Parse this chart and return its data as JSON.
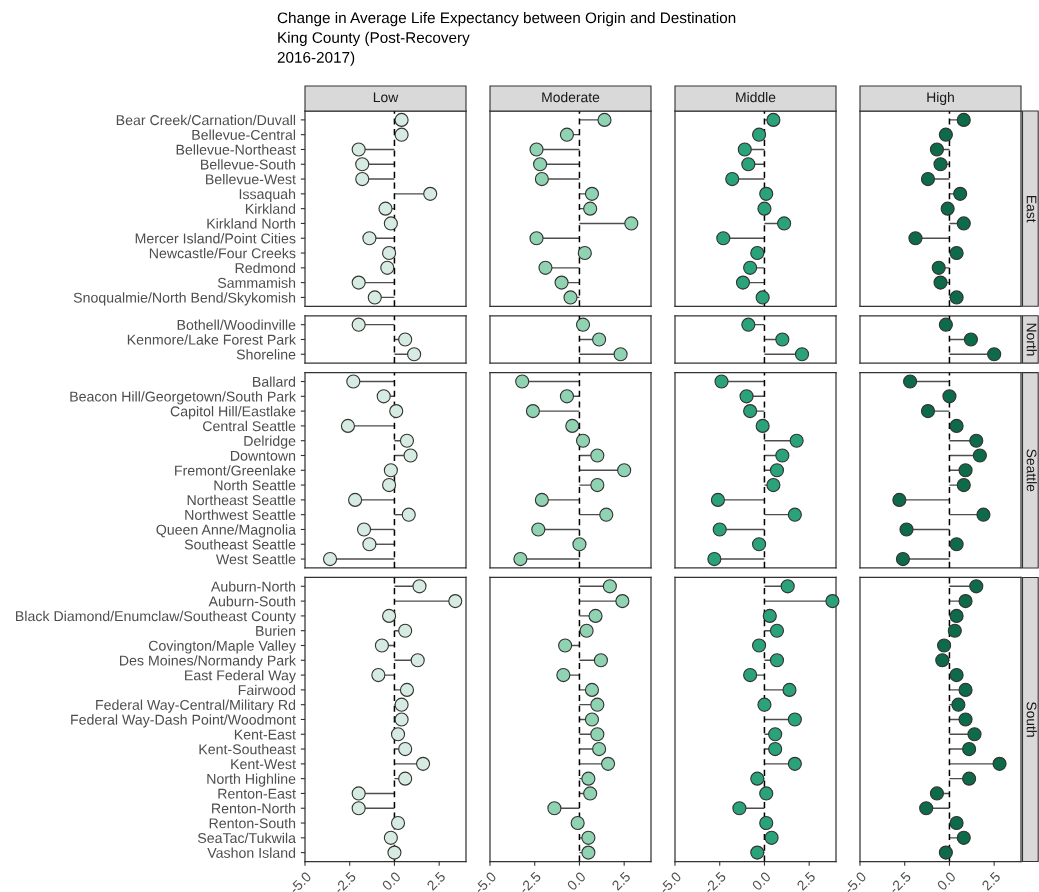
{
  "chart_data": [
    {
      "type": "lollipop",
      "orientation": "horizontal",
      "title": "Change in Average Life Expectancy between Origin and Destination\nKing County (Post-Recovery\n2016-2017)",
      "subtitle": "Low",
      "categories": [
        "Bear Creek/Carnation/Duvall",
        "Bellevue-Central",
        "Bellevue-Northeast",
        "Bellevue-South",
        "Bellevue-West",
        "Issaquah",
        "Kirkland",
        "Kirkland North",
        "Mercer Island/Point Cities",
        "Newcastle/Four Creeks",
        "Redmond",
        "Sammamish",
        "Snoqualmie/North Bend/Skykomish"
      ],
      "values": [
        0.4,
        0.4,
        -2.0,
        -1.8,
        -1.8,
        2.0,
        -0.5,
        -0.2,
        -1.4,
        -0.3,
        -0.4,
        -2.0,
        -1.1
      ],
      "color": "#d6ece2",
      "marker": "circle",
      "xlim": [
        -5,
        4
      ],
      "ref_lines": [
        {
          "axis": "x",
          "value": 0,
          "color": "#000000",
          "line_style": "dashed"
        }
      ],
      "tick_labels": "y"
    },
    {
      "type": "lollipop",
      "orientation": "horizontal",
      "subtitle": "Moderate",
      "categories": [
        "Bear Creek/Carnation/Duvall",
        "Bellevue-Central",
        "Bellevue-Northeast",
        "Bellevue-South",
        "Bellevue-West",
        "Issaquah",
        "Kirkland",
        "Kirkland North",
        "Mercer Island/Point Cities",
        "Newcastle/Four Creeks",
        "Redmond",
        "Sammamish",
        "Snoqualmie/North Bend/Skykomish"
      ],
      "values": [
        1.4,
        -0.7,
        -2.4,
        -2.2,
        -2.1,
        0.7,
        0.6,
        2.9,
        -2.4,
        0.3,
        -1.9,
        -1.0,
        -0.5
      ],
      "color": "#8fd3b3",
      "marker": "circle",
      "xlim": [
        -5,
        4
      ],
      "ref_lines": [
        {
          "axis": "x",
          "value": 0,
          "color": "#000000",
          "line_style": "dashed"
        }
      ],
      "tick_labels": false
    },
    {
      "type": "lollipop",
      "orientation": "horizontal",
      "subtitle": "Middle",
      "categories": [
        "Bear Creek/Carnation/Duvall",
        "Bellevue-Central",
        "Bellevue-Northeast",
        "Bellevue-South",
        "Bellevue-West",
        "Issaquah",
        "Kirkland",
        "Kirkland North",
        "Mercer Island/Point Cities",
        "Newcastle/Four Creeks",
        "Redmond",
        "Sammamish",
        "Snoqualmie/North Bend/Skykomish"
      ],
      "values": [
        0.5,
        -0.3,
        -1.1,
        -0.9,
        -1.8,
        0.1,
        0.0,
        1.1,
        -2.3,
        -0.4,
        -0.8,
        -1.2,
        -0.1
      ],
      "color": "#2ba37a",
      "marker": "circle",
      "xlim": [
        -5,
        4
      ],
      "ref_lines": [
        {
          "axis": "x",
          "value": 0,
          "color": "#000000",
          "line_style": "dashed"
        }
      ],
      "tick_labels": false
    },
    {
      "type": "lollipop",
      "orientation": "horizontal",
      "subtitle": "High",
      "y2label": "East",
      "categories": [
        "Bear Creek/Carnation/Duvall",
        "Bellevue-Central",
        "Bellevue-Northeast",
        "Bellevue-South",
        "Bellevue-West",
        "Issaquah",
        "Kirkland",
        "Kirkland North",
        "Mercer Island/Point Cities",
        "Newcastle/Four Creeks",
        "Redmond",
        "Sammamish",
        "Snoqualmie/North Bend/Skykomish"
      ],
      "values": [
        0.8,
        -0.2,
        -0.7,
        -0.5,
        -1.2,
        0.6,
        -0.1,
        0.8,
        -1.9,
        0.4,
        -0.6,
        -0.5,
        0.4
      ],
      "color": "#0d6b49",
      "marker": "circle",
      "xlim": [
        -5,
        4
      ],
      "ref_lines": [
        {
          "axis": "x",
          "value": 0,
          "color": "#000000",
          "line_style": "dashed"
        }
      ],
      "tick_labels": false
    },
    {
      "type": "lollipop",
      "orientation": "horizontal",
      "categories": [
        "Bothell/Woodinville",
        "Kenmore/Lake Forest Park",
        "Shoreline"
      ],
      "values": [
        -2.0,
        0.6,
        1.1
      ],
      "color": "#d6ece2",
      "marker": "circle",
      "xlim": [
        -5,
        4
      ],
      "ref_lines": [
        {
          "axis": "x",
          "value": 0,
          "color": "#000000",
          "line_style": "dashed"
        }
      ],
      "tick_labels": "y"
    },
    {
      "type": "lollipop",
      "orientation": "horizontal",
      "categories": [
        "Bothell/Woodinville",
        "Kenmore/Lake Forest Park",
        "Shoreline"
      ],
      "values": [
        0.2,
        1.1,
        2.3
      ],
      "color": "#8fd3b3",
      "marker": "circle",
      "xlim": [
        -5,
        4
      ],
      "ref_lines": [
        {
          "axis": "x",
          "value": 0,
          "color": "#000000",
          "line_style": "dashed"
        }
      ],
      "tick_labels": false
    },
    {
      "type": "lollipop",
      "orientation": "horizontal",
      "categories": [
        "Bothell/Woodinville",
        "Kenmore/Lake Forest Park",
        "Shoreline"
      ],
      "values": [
        -0.9,
        1.0,
        2.1
      ],
      "color": "#2ba37a",
      "marker": "circle",
      "xlim": [
        -5,
        4
      ],
      "ref_lines": [
        {
          "axis": "x",
          "value": 0,
          "color": "#000000",
          "line_style": "dashed"
        }
      ],
      "tick_labels": false
    },
    {
      "type": "lollipop",
      "orientation": "horizontal",
      "y2label": "North",
      "categories": [
        "Bothell/Woodinville",
        "Kenmore/Lake Forest Park",
        "Shoreline"
      ],
      "values": [
        -0.2,
        1.2,
        2.5
      ],
      "color": "#0d6b49",
      "marker": "circle",
      "xlim": [
        -5,
        4
      ],
      "ref_lines": [
        {
          "axis": "x",
          "value": 0,
          "color": "#000000",
          "line_style": "dashed"
        }
      ],
      "tick_labels": false
    },
    {
      "type": "lollipop",
      "orientation": "horizontal",
      "categories": [
        "Ballard",
        "Beacon Hill/Georgetown/South Park",
        "Capitol Hill/Eastlake",
        "Central Seattle",
        "Delridge",
        "Downtown",
        "Fremont/Greenlake",
        "North Seattle",
        "Northeast Seattle",
        "Northwest Seattle",
        "Queen Anne/Magnolia",
        "Southeast Seattle",
        "West Seattle"
      ],
      "values": [
        -2.3,
        -0.6,
        0.1,
        -2.6,
        0.7,
        0.9,
        -0.2,
        -0.3,
        -2.2,
        0.8,
        -1.7,
        -1.4,
        -3.6
      ],
      "color": "#d6ece2",
      "marker": "circle",
      "xlim": [
        -5,
        4
      ],
      "ref_lines": [
        {
          "axis": "x",
          "value": 0,
          "color": "#000000",
          "line_style": "dashed"
        }
      ],
      "tick_labels": "y"
    },
    {
      "type": "lollipop",
      "orientation": "horizontal",
      "categories": [
        "Ballard",
        "Beacon Hill/Georgetown/South Park",
        "Capitol Hill/Eastlake",
        "Central Seattle",
        "Delridge",
        "Downtown",
        "Fremont/Greenlake",
        "North Seattle",
        "Northeast Seattle",
        "Northwest Seattle",
        "Queen Anne/Magnolia",
        "Southeast Seattle",
        "West Seattle"
      ],
      "values": [
        -3.2,
        -0.7,
        -2.6,
        -0.4,
        0.2,
        1.0,
        2.5,
        1.0,
        -2.1,
        1.5,
        -2.3,
        0.0,
        -3.3
      ],
      "color": "#8fd3b3",
      "marker": "circle",
      "xlim": [
        -5,
        4
      ],
      "ref_lines": [
        {
          "axis": "x",
          "value": 0,
          "color": "#000000",
          "line_style": "dashed"
        }
      ],
      "tick_labels": false
    },
    {
      "type": "lollipop",
      "orientation": "horizontal",
      "categories": [
        "Ballard",
        "Beacon Hill/Georgetown/South Park",
        "Capitol Hill/Eastlake",
        "Central Seattle",
        "Delridge",
        "Downtown",
        "Fremont/Greenlake",
        "North Seattle",
        "Northeast Seattle",
        "Northwest Seattle",
        "Queen Anne/Magnolia",
        "Southeast Seattle",
        "West Seattle"
      ],
      "values": [
        -2.4,
        -1.0,
        -0.8,
        -0.1,
        1.8,
        1.0,
        0.7,
        0.5,
        -2.6,
        1.7,
        -2.5,
        -0.3,
        -2.8
      ],
      "color": "#2ba37a",
      "marker": "circle",
      "xlim": [
        -5,
        4
      ],
      "ref_lines": [
        {
          "axis": "x",
          "value": 0,
          "color": "#000000",
          "line_style": "dashed"
        }
      ],
      "tick_labels": false
    },
    {
      "type": "lollipop",
      "orientation": "horizontal",
      "y2label": "Seattle",
      "categories": [
        "Ballard",
        "Beacon Hill/Georgetown/South Park",
        "Capitol Hill/Eastlake",
        "Central Seattle",
        "Delridge",
        "Downtown",
        "Fremont/Greenlake",
        "North Seattle",
        "Northeast Seattle",
        "Northwest Seattle",
        "Queen Anne/Magnolia",
        "Southeast Seattle",
        "West Seattle"
      ],
      "values": [
        -2.2,
        0.0,
        -1.2,
        0.4,
        1.5,
        1.7,
        0.9,
        0.8,
        -2.8,
        1.9,
        -2.4,
        0.4,
        -2.6
      ],
      "color": "#0d6b49",
      "marker": "circle",
      "xlim": [
        -5,
        4
      ],
      "ref_lines": [
        {
          "axis": "x",
          "value": 0,
          "color": "#000000",
          "line_style": "dashed"
        }
      ],
      "tick_labels": false
    },
    {
      "type": "lollipop",
      "orientation": "horizontal",
      "categories": [
        "Auburn-North",
        "Auburn-South",
        "Black Diamond/Enumclaw/Southeast County",
        "Burien",
        "Covington/Maple Valley",
        "Des Moines/Normandy Park",
        "East Federal Way",
        "Fairwood",
        "Federal Way-Central/Military Rd",
        "Federal Way-Dash Point/Woodmont",
        "Kent-East",
        "Kent-Southeast",
        "Kent-West",
        "North Highline",
        "Renton-East",
        "Renton-North",
        "Renton-South",
        "SeaTac/Tukwila",
        "Vashon Island"
      ],
      "values": [
        1.4,
        3.4,
        -0.3,
        0.6,
        -0.7,
        1.3,
        -0.9,
        0.7,
        0.4,
        0.4,
        0.2,
        0.6,
        1.6,
        0.6,
        -2.0,
        -2.0,
        0.2,
        -0.2,
        0.0
      ],
      "color": "#d6ece2",
      "marker": "circle",
      "xlim": [
        -5,
        4
      ],
      "xticks": [
        {
          "value": -5.0,
          "label": "-5.0"
        },
        {
          "value": -2.5,
          "label": "-2.5"
        },
        {
          "value": 0.0,
          "label": "0.0"
        },
        {
          "value": 2.5,
          "label": "2.5"
        }
      ],
      "ref_lines": [
        {
          "axis": "x",
          "value": 0,
          "color": "#000000",
          "line_style": "dashed"
        }
      ]
    },
    {
      "type": "lollipop",
      "orientation": "horizontal",
      "categories": [
        "Auburn-North",
        "Auburn-South",
        "Black Diamond/Enumclaw/Southeast County",
        "Burien",
        "Covington/Maple Valley",
        "Des Moines/Normandy Park",
        "East Federal Way",
        "Fairwood",
        "Federal Way-Central/Military Rd",
        "Federal Way-Dash Point/Woodmont",
        "Kent-East",
        "Kent-Southeast",
        "Kent-West",
        "North Highline",
        "Renton-East",
        "Renton-North",
        "Renton-South",
        "SeaTac/Tukwila",
        "Vashon Island"
      ],
      "values": [
        1.7,
        2.4,
        0.9,
        0.4,
        -0.8,
        1.2,
        -0.9,
        0.7,
        1.0,
        0.7,
        1.0,
        1.1,
        1.6,
        0.5,
        0.6,
        -1.4,
        -0.1,
        0.5,
        0.5
      ],
      "color": "#8fd3b3",
      "marker": "circle",
      "xlim": [
        -5,
        4
      ],
      "xticks": [
        {
          "value": -5.0,
          "label": "-5.0"
        },
        {
          "value": -2.5,
          "label": "-2.5"
        },
        {
          "value": 0.0,
          "label": "0.0"
        },
        {
          "value": 2.5,
          "label": "2.5"
        }
      ],
      "ref_lines": [
        {
          "axis": "x",
          "value": 0,
          "color": "#000000",
          "line_style": "dashed"
        }
      ],
      "tick_labels": "x"
    },
    {
      "type": "lollipop",
      "orientation": "horizontal",
      "categories": [
        "Auburn-North",
        "Auburn-South",
        "Black Diamond/Enumclaw/Southeast County",
        "Burien",
        "Covington/Maple Valley",
        "Des Moines/Normandy Park",
        "East Federal Way",
        "Fairwood",
        "Federal Way-Central/Military Rd",
        "Federal Way-Dash Point/Woodmont",
        "Kent-East",
        "Kent-Southeast",
        "Kent-West",
        "North Highline",
        "Renton-East",
        "Renton-North",
        "Renton-South",
        "SeaTac/Tukwila",
        "Vashon Island"
      ],
      "values": [
        1.3,
        3.8,
        0.3,
        0.7,
        -0.3,
        0.7,
        -0.8,
        1.4,
        0.0,
        1.7,
        0.6,
        0.6,
        1.7,
        -0.4,
        0.1,
        -1.4,
        0.1,
        0.4,
        -0.4
      ],
      "color": "#2ba37a",
      "marker": "circle",
      "xlim": [
        -5,
        4
      ],
      "xticks": [
        {
          "value": -5.0,
          "label": "-5.0"
        },
        {
          "value": -2.5,
          "label": "-2.5"
        },
        {
          "value": 0.0,
          "label": "0.0"
        },
        {
          "value": 2.5,
          "label": "2.5"
        }
      ],
      "ref_lines": [
        {
          "axis": "x",
          "value": 0,
          "color": "#000000",
          "line_style": "dashed"
        }
      ],
      "tick_labels": "x"
    },
    {
      "type": "lollipop",
      "orientation": "horizontal",
      "y2label": "South",
      "categories": [
        "Auburn-North",
        "Auburn-South",
        "Black Diamond/Enumclaw/Southeast County",
        "Burien",
        "Covington/Maple Valley",
        "Des Moines/Normandy Park",
        "East Federal Way",
        "Fairwood",
        "Federal Way-Central/Military Rd",
        "Federal Way-Dash Point/Woodmont",
        "Kent-East",
        "Kent-Southeast",
        "Kent-West",
        "North Highline",
        "Renton-East",
        "Renton-North",
        "Renton-South",
        "SeaTac/Tukwila",
        "Vashon Island"
      ],
      "values": [
        1.5,
        0.9,
        0.4,
        0.3,
        -0.3,
        -0.4,
        0.4,
        0.9,
        0.5,
        0.9,
        1.4,
        1.1,
        2.8,
        1.1,
        -0.7,
        -1.3,
        0.4,
        0.8,
        -0.2
      ],
      "color": "#0d6b49",
      "marker": "circle",
      "xlim": [
        -5,
        4
      ],
      "xticks": [
        {
          "value": -5.0,
          "label": "-5.0"
        },
        {
          "value": -2.5,
          "label": "-2.5"
        },
        {
          "value": 0.0,
          "label": "0.0"
        },
        {
          "value": 2.5,
          "label": "2.5"
        }
      ],
      "ref_lines": [
        {
          "axis": "x",
          "value": 0,
          "color": "#000000",
          "line_style": "dashed"
        }
      ],
      "tick_labels": "x"
    }
  ]
}
